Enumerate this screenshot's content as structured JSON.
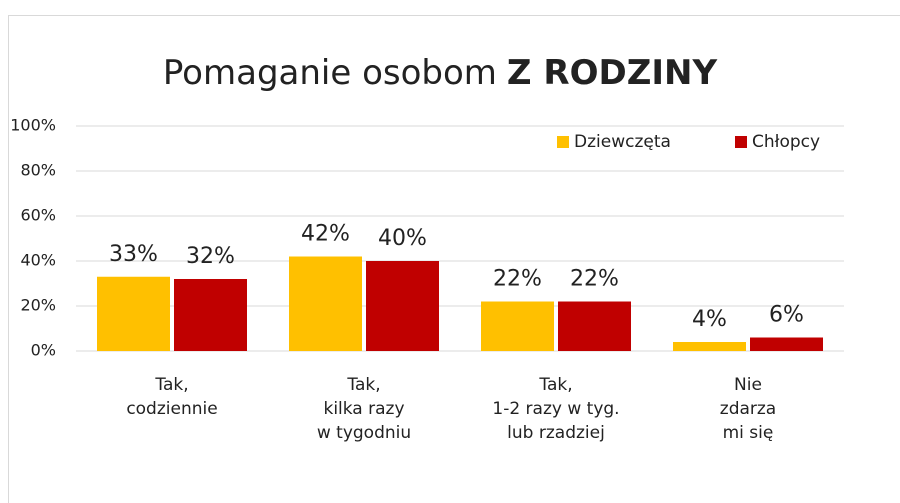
{
  "chart_data": {
    "type": "bar",
    "title": [
      "Pomaganie osobom",
      "Z RODZINY"
    ],
    "categories": [
      [
        "Tak,",
        "codziennie"
      ],
      [
        "Tak,",
        "kilka razy",
        "w tygodniu"
      ],
      [
        "Tak,",
        "1-2 razy w tyg.",
        "lub rzadziej"
      ],
      [
        "Nie",
        "zdarza",
        "mi się"
      ]
    ],
    "series": [
      {
        "name": "Dziewczęta",
        "color": "#ffc000",
        "values": [
          33,
          42,
          22,
          4
        ],
        "value_labels": [
          "33%",
          "42%",
          "22%",
          "4%"
        ]
      },
      {
        "name": "Chłopcy",
        "color": "#c00000",
        "values": [
          32,
          40,
          22,
          6
        ],
        "value_labels": [
          "32%",
          "40%",
          "22%",
          "6%"
        ]
      }
    ],
    "ylim": [
      0,
      100
    ],
    "yticks": [
      {
        "value": 0,
        "label": "0%"
      },
      {
        "value": 20,
        "label": "20%"
      },
      {
        "value": 40,
        "label": "40%"
      },
      {
        "value": 60,
        "label": "60%"
      },
      {
        "value": 80,
        "label": "80%"
      },
      {
        "value": 100,
        "label": "100%"
      }
    ],
    "grid": true,
    "legend": "top-right"
  }
}
